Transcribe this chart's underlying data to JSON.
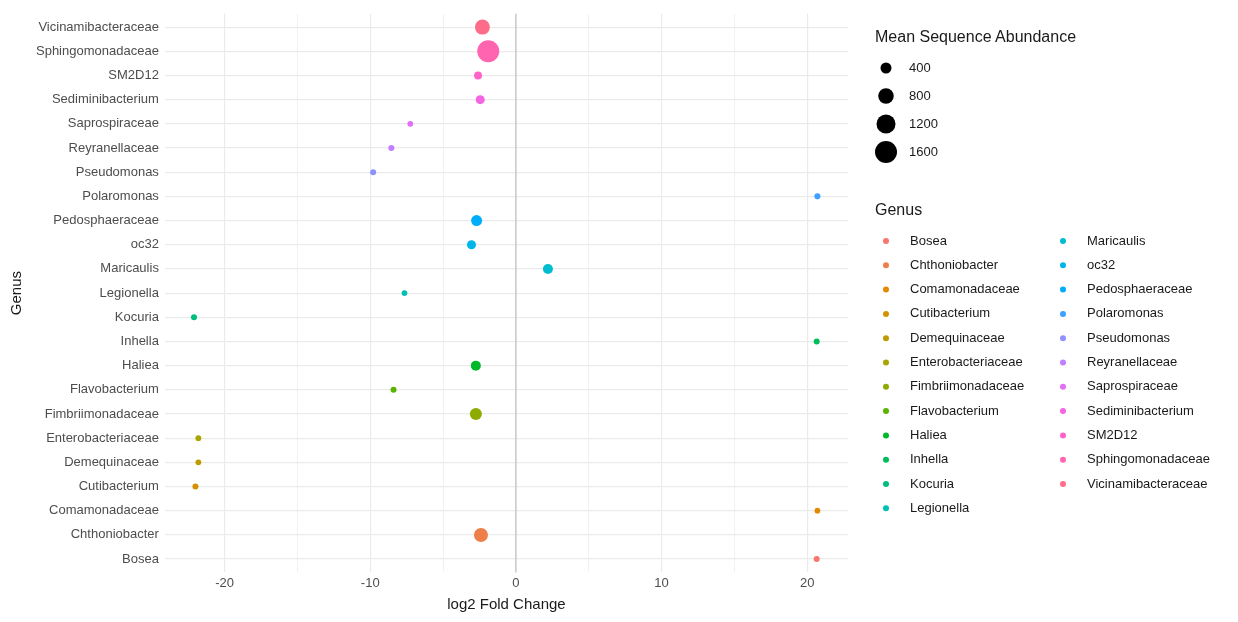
{
  "chart_data": {
    "type": "bubble",
    "orientation": "horizontal",
    "xlabel": "log2 Fold Change",
    "ylabel": "Genus",
    "legend_title": "Genus",
    "annotations": [
      "Mean Sequence Abundance"
    ],
    "categories": [
      "Vicinamibacteraceae",
      "Sphingomonadaceae",
      "SM2D12",
      "Sediminibacterium",
      "Saprospiraceae",
      "Reyranellaceae",
      "Pseudomonas",
      "Polaromonas",
      "Pedosphaeraceae",
      "oc32",
      "Maricaulis",
      "Legionella",
      "Kocuria",
      "Inhella",
      "Haliea",
      "Flavobacterium",
      "Fimbriimonadaceae",
      "Enterobacteriaceae",
      "Demequinaceae",
      "Cutibacterium",
      "Comamonadaceae",
      "Chthoniobacter",
      "Bosea"
    ],
    "xlim": [
      -24.1,
      22.8
    ],
    "xticks": [
      -20,
      {
        "value": -15,
        "label": null
      },
      -10,
      {
        "value": -5,
        "label": null
      },
      0,
      {
        "value": 5,
        "label": null
      },
      10,
      {
        "value": 15,
        "label": null
      },
      20
    ],
    "grid": true,
    "legend": "right",
    "size_legend": [
      400,
      800,
      1200,
      1600
    ],
    "ref_lines": [
      {
        "axis": "x",
        "value": 0,
        "color": "#c4c4c4"
      }
    ],
    "series": [
      {
        "name": "Bosea",
        "color": "#f8766d",
        "values": [
          null,
          null,
          null,
          null,
          null,
          null,
          null,
          null,
          null,
          null,
          null,
          null,
          null,
          null,
          null,
          null,
          null,
          null,
          null,
          null,
          null,
          null,
          20.65
        ],
        "sizes": [
          null,
          null,
          null,
          null,
          null,
          null,
          null,
          null,
          null,
          null,
          null,
          null,
          null,
          null,
          null,
          null,
          null,
          null,
          null,
          null,
          null,
          null,
          120
        ]
      },
      {
        "name": "Chthoniobacter",
        "color": "#ef7f49",
        "values": [
          null,
          null,
          null,
          null,
          null,
          null,
          null,
          null,
          null,
          null,
          null,
          null,
          null,
          null,
          null,
          null,
          null,
          null,
          null,
          null,
          null,
          -2.4,
          null
        ],
        "sizes": [
          null,
          null,
          null,
          null,
          null,
          null,
          null,
          null,
          null,
          null,
          null,
          null,
          null,
          null,
          null,
          null,
          null,
          null,
          null,
          null,
          null,
          650,
          null
        ]
      },
      {
        "name": "Comamonadaceae",
        "color": "#e38900",
        "values": [
          null,
          null,
          null,
          null,
          null,
          null,
          null,
          null,
          null,
          null,
          null,
          null,
          null,
          null,
          null,
          null,
          null,
          null,
          null,
          null,
          20.7,
          null,
          null
        ],
        "sizes": [
          null,
          null,
          null,
          null,
          null,
          null,
          null,
          null,
          null,
          null,
          null,
          null,
          null,
          null,
          null,
          null,
          null,
          null,
          null,
          null,
          110,
          null,
          null
        ]
      },
      {
        "name": "Cutibacterium",
        "color": "#d49200",
        "values": [
          null,
          null,
          null,
          null,
          null,
          null,
          null,
          null,
          null,
          null,
          null,
          null,
          null,
          null,
          null,
          null,
          null,
          null,
          null,
          -22,
          null,
          null,
          null
        ],
        "sizes": [
          null,
          null,
          null,
          null,
          null,
          null,
          null,
          null,
          null,
          null,
          null,
          null,
          null,
          null,
          null,
          null,
          null,
          null,
          null,
          120,
          null,
          null,
          null
        ]
      },
      {
        "name": "Demequinaceae",
        "color": "#c09b00",
        "values": [
          null,
          null,
          null,
          null,
          null,
          null,
          null,
          null,
          null,
          null,
          null,
          null,
          null,
          null,
          null,
          null,
          null,
          null,
          -21.8,
          null,
          null,
          null,
          null
        ],
        "sizes": [
          null,
          null,
          null,
          null,
          null,
          null,
          null,
          null,
          null,
          null,
          null,
          null,
          null,
          null,
          null,
          null,
          null,
          null,
          110,
          null,
          null,
          null,
          null
        ]
      },
      {
        "name": "Enterobacteriaceae",
        "color": "#a9a400",
        "values": [
          null,
          null,
          null,
          null,
          null,
          null,
          null,
          null,
          null,
          null,
          null,
          null,
          null,
          null,
          null,
          null,
          null,
          -21.8,
          null,
          null,
          null,
          null,
          null
        ],
        "sizes": [
          null,
          null,
          null,
          null,
          null,
          null,
          null,
          null,
          null,
          null,
          null,
          null,
          null,
          null,
          null,
          null,
          null,
          110,
          null,
          null,
          null,
          null,
          null
        ]
      },
      {
        "name": "Fimbriimonadaceae",
        "color": "#8dab00",
        "values": [
          null,
          null,
          null,
          null,
          null,
          null,
          null,
          null,
          null,
          null,
          null,
          null,
          null,
          null,
          null,
          null,
          -2.75,
          null,
          null,
          null,
          null,
          null,
          null
        ],
        "sizes": [
          null,
          null,
          null,
          null,
          null,
          null,
          null,
          null,
          null,
          null,
          null,
          null,
          null,
          null,
          null,
          null,
          480,
          null,
          null,
          null,
          null,
          null,
          null
        ]
      },
      {
        "name": "Flavobacterium",
        "color": "#5bb300",
        "values": [
          null,
          null,
          null,
          null,
          null,
          null,
          null,
          null,
          null,
          null,
          null,
          null,
          null,
          null,
          null,
          -8.4,
          null,
          null,
          null,
          null,
          null,
          null,
          null
        ],
        "sizes": [
          null,
          null,
          null,
          null,
          null,
          null,
          null,
          null,
          null,
          null,
          null,
          null,
          null,
          null,
          null,
          120,
          null,
          null,
          null,
          null,
          null,
          null,
          null
        ]
      },
      {
        "name": "Haliea",
        "color": "#00b92a",
        "values": [
          null,
          null,
          null,
          null,
          null,
          null,
          null,
          null,
          null,
          null,
          null,
          null,
          null,
          null,
          -2.75,
          null,
          null,
          null,
          null,
          null,
          null,
          null,
          null
        ],
        "sizes": [
          null,
          null,
          null,
          null,
          null,
          null,
          null,
          null,
          null,
          null,
          null,
          null,
          null,
          null,
          330,
          null,
          null,
          null,
          null,
          null,
          null,
          null,
          null
        ]
      },
      {
        "name": "Inhella",
        "color": "#00bd5c",
        "values": [
          null,
          null,
          null,
          null,
          null,
          null,
          null,
          null,
          null,
          null,
          null,
          null,
          null,
          20.65,
          null,
          null,
          null,
          null,
          null,
          null,
          null,
          null,
          null
        ],
        "sizes": [
          null,
          null,
          null,
          null,
          null,
          null,
          null,
          null,
          null,
          null,
          null,
          null,
          null,
          120,
          null,
          null,
          null,
          null,
          null,
          null,
          null,
          null,
          null
        ]
      },
      {
        "name": "Kocuria",
        "color": "#00bf7d",
        "values": [
          null,
          null,
          null,
          null,
          null,
          null,
          null,
          null,
          null,
          null,
          null,
          null,
          -22.1,
          null,
          null,
          null,
          null,
          null,
          null,
          null,
          null,
          null,
          null
        ],
        "sizes": [
          null,
          null,
          null,
          null,
          null,
          null,
          null,
          null,
          null,
          null,
          null,
          null,
          120,
          null,
          null,
          null,
          null,
          null,
          null,
          null,
          null,
          null,
          null
        ]
      },
      {
        "name": "Legionella",
        "color": "#00c0b2",
        "values": [
          null,
          null,
          null,
          null,
          null,
          null,
          null,
          null,
          null,
          null,
          null,
          -7.65,
          null,
          null,
          null,
          null,
          null,
          null,
          null,
          null,
          null,
          null,
          null
        ],
        "sizes": [
          null,
          null,
          null,
          null,
          null,
          null,
          null,
          null,
          null,
          null,
          null,
          110,
          null,
          null,
          null,
          null,
          null,
          null,
          null,
          null,
          null,
          null,
          null
        ]
      },
      {
        "name": "Maricaulis",
        "color": "#00bcd0",
        "values": [
          null,
          null,
          null,
          null,
          null,
          null,
          null,
          null,
          null,
          null,
          2.2,
          null,
          null,
          null,
          null,
          null,
          null,
          null,
          null,
          null,
          null,
          null,
          null
        ],
        "sizes": [
          null,
          null,
          null,
          null,
          null,
          null,
          null,
          null,
          null,
          null,
          330,
          null,
          null,
          null,
          null,
          null,
          null,
          null,
          null,
          null,
          null,
          null,
          null
        ]
      },
      {
        "name": "oc32",
        "color": "#00b6e9",
        "values": [
          null,
          null,
          null,
          null,
          null,
          null,
          null,
          null,
          null,
          -3.05,
          null,
          null,
          null,
          null,
          null,
          null,
          null,
          null,
          null,
          null,
          null,
          null,
          null
        ],
        "sizes": [
          null,
          null,
          null,
          null,
          null,
          null,
          null,
          null,
          null,
          270,
          null,
          null,
          null,
          null,
          null,
          null,
          null,
          null,
          null,
          null,
          null,
          null,
          null
        ]
      },
      {
        "name": "Pedosphaeraceae",
        "color": "#00adfa",
        "values": [
          null,
          null,
          null,
          null,
          null,
          null,
          null,
          null,
          -2.7,
          null,
          null,
          null,
          null,
          null,
          null,
          null,
          null,
          null,
          null,
          null,
          null,
          null,
          null
        ],
        "sizes": [
          null,
          null,
          null,
          null,
          null,
          null,
          null,
          null,
          400,
          null,
          null,
          null,
          null,
          null,
          null,
          null,
          null,
          null,
          null,
          null,
          null,
          null,
          null
        ]
      },
      {
        "name": "Polaromonas",
        "color": "#3ca1ff",
        "values": [
          null,
          null,
          null,
          null,
          null,
          null,
          null,
          20.7,
          null,
          null,
          null,
          null,
          null,
          null,
          null,
          null,
          null,
          null,
          null,
          null,
          null,
          null,
          null
        ],
        "sizes": [
          null,
          null,
          null,
          null,
          null,
          null,
          null,
          120,
          null,
          null,
          null,
          null,
          null,
          null,
          null,
          null,
          null,
          null,
          null,
          null,
          null,
          null,
          null
        ]
      },
      {
        "name": "Pseudomonas",
        "color": "#8f91ff",
        "values": [
          null,
          null,
          null,
          null,
          null,
          null,
          -9.8,
          null,
          null,
          null,
          null,
          null,
          null,
          null,
          null,
          null,
          null,
          null,
          null,
          null,
          null,
          null,
          null
        ],
        "sizes": [
          null,
          null,
          null,
          null,
          null,
          null,
          120,
          null,
          null,
          null,
          null,
          null,
          null,
          null,
          null,
          null,
          null,
          null,
          null,
          null,
          null,
          null,
          null
        ]
      },
      {
        "name": "Reyranellaceae",
        "color": "#c17fff",
        "values": [
          null,
          null,
          null,
          null,
          null,
          -8.55,
          null,
          null,
          null,
          null,
          null,
          null,
          null,
          null,
          null,
          null,
          null,
          null,
          null,
          null,
          null,
          null,
          null
        ],
        "sizes": [
          null,
          null,
          null,
          null,
          null,
          120,
          null,
          null,
          null,
          null,
          null,
          null,
          null,
          null,
          null,
          null,
          null,
          null,
          null,
          null,
          null,
          null,
          null
        ]
      },
      {
        "name": "Saprospiraceae",
        "color": "#e56ef8",
        "values": [
          null,
          null,
          null,
          null,
          -7.25,
          null,
          null,
          null,
          null,
          null,
          null,
          null,
          null,
          null,
          null,
          null,
          null,
          null,
          null,
          null,
          null,
          null,
          null
        ],
        "sizes": [
          null,
          null,
          null,
          null,
          110,
          null,
          null,
          null,
          null,
          null,
          null,
          null,
          null,
          null,
          null,
          null,
          null,
          null,
          null,
          null,
          null,
          null,
          null
        ]
      },
      {
        "name": "Sediminibacterium",
        "color": "#f564e3",
        "values": [
          null,
          null,
          null,
          -2.45,
          null,
          null,
          null,
          null,
          null,
          null,
          null,
          null,
          null,
          null,
          null,
          null,
          null,
          null,
          null,
          null,
          null,
          null,
          null
        ],
        "sizes": [
          null,
          null,
          null,
          270,
          null,
          null,
          null,
          null,
          null,
          null,
          null,
          null,
          null,
          null,
          null,
          null,
          null,
          null,
          null,
          null,
          null,
          null,
          null
        ]
      },
      {
        "name": "SM2D12",
        "color": "#ff62cb",
        "values": [
          null,
          null,
          -2.6,
          null,
          null,
          null,
          null,
          null,
          null,
          null,
          null,
          null,
          null,
          null,
          null,
          null,
          null,
          null,
          null,
          null,
          null,
          null,
          null
        ],
        "sizes": [
          null,
          null,
          210,
          null,
          null,
          null,
          null,
          null,
          null,
          null,
          null,
          null,
          null,
          null,
          null,
          null,
          null,
          null,
          null,
          null,
          null,
          null,
          null
        ]
      },
      {
        "name": "Sphingomonadaceae",
        "color": "#ff64b0",
        "values": [
          null,
          -1.9,
          null,
          null,
          null,
          null,
          null,
          null,
          null,
          null,
          null,
          null,
          null,
          null,
          null,
          null,
          null,
          null,
          null,
          null,
          null,
          null,
          null
        ],
        "sizes": [
          null,
          1600,
          null,
          null,
          null,
          null,
          null,
          null,
          null,
          null,
          null,
          null,
          null,
          null,
          null,
          null,
          null,
          null,
          null,
          null,
          null,
          null,
          null
        ]
      },
      {
        "name": "Vicinamibacteraceae",
        "color": "#fd6d8a",
        "values": [
          -2.3,
          null,
          null,
          null,
          null,
          null,
          null,
          null,
          null,
          null,
          null,
          null,
          null,
          null,
          null,
          null,
          null,
          null,
          null,
          null,
          null,
          null,
          null
        ],
        "sizes": [
          740,
          null,
          null,
          null,
          null,
          null,
          null,
          null,
          null,
          null,
          null,
          null,
          null,
          null,
          null,
          null,
          null,
          null,
          null,
          null,
          null,
          null,
          null
        ]
      }
    ]
  }
}
